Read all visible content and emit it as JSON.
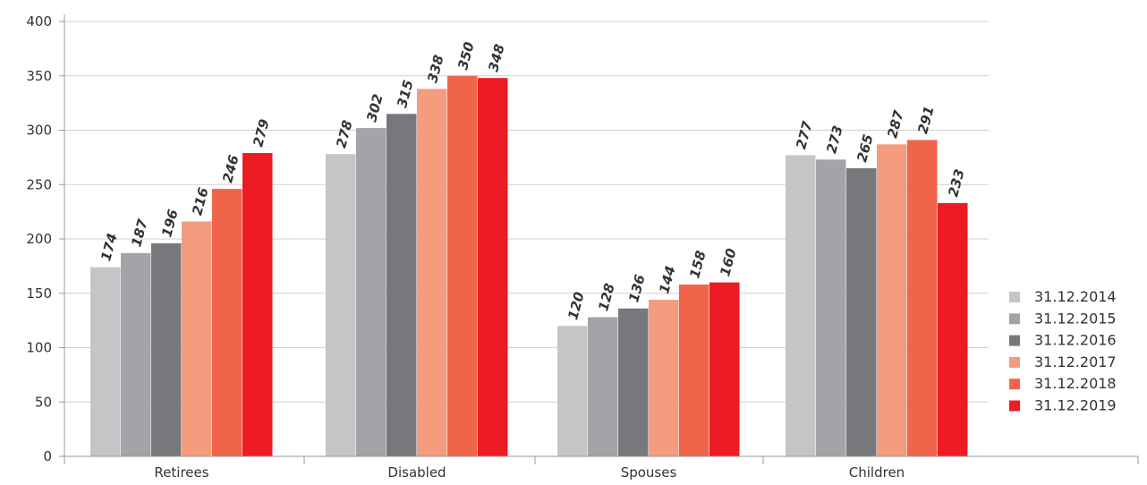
{
  "chart_data": {
    "type": "bar",
    "title": "",
    "xlabel": "",
    "ylabel": "",
    "ylim": [
      0,
      400
    ],
    "yticks": [
      0,
      50,
      100,
      150,
      200,
      250,
      300,
      350,
      400
    ],
    "grid": true,
    "legend_position": "right",
    "categories": [
      "Retirees",
      "Disabled",
      "Spouses",
      "Children"
    ],
    "series": [
      {
        "name": "31.12.2014",
        "color": "#c4c5c7",
        "values": [
          174,
          278,
          120,
          277
        ]
      },
      {
        "name": "31.12.2015",
        "color": "#a3a4a7",
        "values": [
          187,
          302,
          128,
          273
        ]
      },
      {
        "name": "31.12.2016",
        "color": "#76787c",
        "values": [
          196,
          315,
          136,
          265
        ]
      },
      {
        "name": "31.12.2017",
        "color": "#f59c7e",
        "values": [
          216,
          338,
          144,
          287
        ]
      },
      {
        "name": "31.12.2018",
        "color": "#f0654a",
        "values": [
          246,
          350,
          158,
          291
        ]
      },
      {
        "name": "31.12.2019",
        "color": "#ed1c24",
        "values": [
          279,
          348,
          160,
          233
        ]
      }
    ]
  }
}
